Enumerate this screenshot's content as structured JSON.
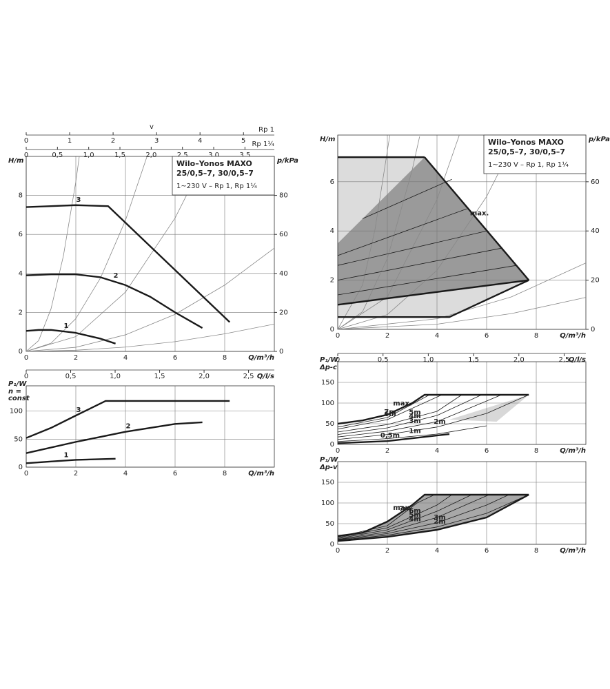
{
  "chart_data": [
    {
      "type": "line",
      "title": [
        "Wilo–Yonos MAXO",
        "25/0,5–7, 30/0,5–7"
      ],
      "subtitle": "1~230 V – Rp 1, Rp 1¼",
      "xlabel": "Q/m³/h",
      "ylabel": "H/m",
      "y2label": "p/kPa",
      "grid": true,
      "xlim": [
        0,
        10
      ],
      "xticks": [
        0,
        2,
        4,
        6,
        8
      ],
      "ylim": [
        0,
        10
      ],
      "yticks": [
        0,
        2,
        4,
        6,
        8
      ],
      "y2lim": [
        0,
        100
      ],
      "y2ticks": [
        0,
        20,
        40,
        60,
        80
      ],
      "top_axes": [
        {
          "label": "v",
          "unit": "Rp 1",
          "xlim": [
            0,
            5.71
          ],
          "xticks": [
            0,
            1,
            2,
            3,
            4,
            5
          ]
        },
        {
          "unit": "Rp 1¼",
          "xlim": [
            0,
            3.97
          ],
          "xticks": [
            0,
            {
              "value": 0.5,
              "label": "0,5"
            },
            {
              "value": 1,
              "label": "1,0"
            },
            {
              "value": 1.5,
              "label": "1,5"
            },
            {
              "value": 2,
              "label": "2,0"
            },
            {
              "value": 2.5,
              "label": "2,5"
            },
            {
              "value": 3,
              "label": "3,0"
            },
            {
              "value": 3.5,
              "label": "3,5"
            }
          ]
        }
      ],
      "bottom_axis": {
        "label": "Q/l/s",
        "xlim": [
          0,
          2.79
        ],
        "xticks": [
          0,
          {
            "value": 0.5,
            "label": "0,5"
          },
          {
            "value": 1,
            "label": "1,0"
          },
          {
            "value": 1.5,
            "label": "1,5"
          },
          {
            "value": 2,
            "label": "2,0"
          },
          {
            "value": 2.5,
            "label": "2,5"
          }
        ]
      },
      "series": [
        {
          "color": "#888888",
          "style": "thin",
          "x": [
            0,
            0.5,
            1,
            1.5,
            2,
            2.14
          ],
          "values": [
            0,
            0.55,
            2.18,
            4.9,
            8.7,
            10
          ]
        },
        {
          "color": "#888888",
          "style": "thin",
          "x": [
            0,
            1,
            2,
            3,
            4,
            4.87
          ],
          "values": [
            0,
            0.42,
            1.68,
            3.78,
            6.72,
            10
          ]
        },
        {
          "color": "#888888",
          "style": "thin",
          "x": [
            0,
            2,
            4,
            6,
            7.25
          ],
          "values": [
            0,
            0.76,
            3.04,
            6.84,
            10
          ]
        },
        {
          "color": "#888888",
          "style": "thin",
          "x": [
            0,
            2,
            4,
            6,
            8,
            10
          ],
          "values": [
            0,
            0.21,
            0.85,
            1.9,
            3.4,
            5.3
          ]
        },
        {
          "color": "#888888",
          "style": "thin",
          "x": [
            0,
            2,
            4,
            6,
            8,
            10
          ],
          "values": [
            0,
            0.06,
            0.22,
            0.5,
            0.9,
            1.4
          ]
        },
        {
          "name": "3",
          "color": "#1a1a1a",
          "style": "thick",
          "x": [
            0,
            1,
            2,
            3.3,
            8.2
          ],
          "values": [
            7.4,
            7.45,
            7.5,
            7.45,
            1.5
          ]
        },
        {
          "name": "2",
          "color": "#1a1a1a",
          "style": "thick",
          "x": [
            0,
            1,
            2,
            3,
            4,
            5,
            6,
            7.1
          ],
          "values": [
            3.9,
            3.95,
            3.95,
            3.8,
            3.4,
            2.8,
            2.0,
            1.2
          ]
        },
        {
          "name": "1",
          "color": "#1a1a1a",
          "style": "thick",
          "x": [
            0,
            0.5,
            1,
            2,
            3,
            3.6
          ],
          "values": [
            1.05,
            1.1,
            1.1,
            0.95,
            0.65,
            0.4
          ]
        }
      ]
    },
    {
      "type": "line",
      "xlabel": "Q/m³/h",
      "ylabel": "P₁/W",
      "mode_label": [
        "n =",
        "const"
      ],
      "grid": true,
      "xlim": [
        0,
        10
      ],
      "xticks": [
        0,
        2,
        4,
        6,
        8
      ],
      "ylim": [
        0,
        145
      ],
      "yticks": [
        0,
        50,
        100
      ],
      "series": [
        {
          "name": "3",
          "color": "#1a1a1a",
          "style": "thick",
          "x": [
            0,
            1,
            2,
            3.2,
            8.2
          ],
          "values": [
            52,
            70,
            92,
            118,
            118
          ]
        },
        {
          "name": "2",
          "color": "#1a1a1a",
          "style": "thick",
          "x": [
            0,
            2,
            4,
            6,
            7.1
          ],
          "values": [
            25,
            45,
            63,
            77,
            80
          ]
        },
        {
          "name": "1",
          "color": "#1a1a1a",
          "style": "thick",
          "x": [
            0,
            1,
            2,
            3.6
          ],
          "values": [
            7,
            10,
            13,
            15
          ]
        }
      ]
    },
    {
      "type": "line",
      "title": [
        "Wilo–Yonos MAXO",
        "25/0,5–7, 30/0,5–7"
      ],
      "subtitle": "1~230 V – Rp 1, Rp 1¼",
      "xlabel": "Q/m³/h",
      "ylabel": "H/m",
      "y2label": "p/kPa",
      "grid": true,
      "xlim": [
        0,
        10
      ],
      "xticks": [
        0,
        2,
        4,
        6,
        8
      ],
      "ylim": [
        0,
        7.9
      ],
      "yticks": [
        0,
        2,
        4,
        6
      ],
      "y2lim": [
        0,
        79
      ],
      "y2ticks": [
        0,
        20,
        40,
        60
      ],
      "bottom_axis": {
        "label": "Q/l/s",
        "xlim": [
          0,
          2.74
        ],
        "xticks": [
          0,
          {
            "value": 0.5,
            "label": "0,5"
          },
          {
            "value": 1,
            "label": "1,0"
          },
          {
            "value": 1.5,
            "label": "1,5"
          },
          {
            "value": 2,
            "label": "2,0"
          },
          {
            "value": 2.5,
            "label": "2,5"
          }
        ]
      },
      "regions": [
        {
          "fill": "#dcdcdc",
          "x": [
            0,
            3.5,
            0
          ],
          "values": [
            7,
            7,
            3.5
          ]
        },
        {
          "fill": "#dcdcdc",
          "x": [
            0,
            4.5,
            7.7,
            0
          ],
          "values": [
            0.5,
            0.5,
            2,
            1
          ]
        },
        {
          "fill": "#9a9a9a",
          "x": [
            0,
            0,
            3.5,
            7.7
          ],
          "values": [
            1,
            3.5,
            7,
            2
          ]
        }
      ],
      "series": [
        {
          "color": "#888888",
          "style": "thin",
          "x": [
            0,
            1,
            1.5,
            2.1
          ],
          "values": [
            0,
            1.8,
            4.05,
            7.9
          ]
        },
        {
          "color": "#888888",
          "style": "thin",
          "x": [
            0,
            1,
            2,
            3,
            3.3
          ],
          "values": [
            0,
            0.72,
            2.88,
            6.48,
            7.84
          ]
        },
        {
          "color": "#888888",
          "style": "thin",
          "x": [
            0,
            2,
            4,
            4.9
          ],
          "values": [
            0,
            1.32,
            5.28,
            7.9
          ]
        },
        {
          "color": "#888888",
          "style": "thin",
          "x": [
            0,
            2,
            4,
            6,
            7.2
          ],
          "values": [
            0,
            0.6,
            2.4,
            5.4,
            7.8
          ]
        },
        {
          "color": "#888888",
          "style": "thin",
          "x": [
            0,
            4,
            7,
            10
          ],
          "values": [
            0,
            0.43,
            1.32,
            2.7
          ]
        },
        {
          "color": "#888888",
          "style": "thin",
          "x": [
            0,
            4,
            7,
            10
          ],
          "values": [
            0,
            0.21,
            0.64,
            1.3
          ]
        },
        {
          "color": "#1a1a1a",
          "style": "thin",
          "x": [
            0,
            7.2
          ],
          "values": [
            1.4,
            2.6
          ]
        },
        {
          "color": "#1a1a1a",
          "style": "thin",
          "x": [
            0,
            6.6
          ],
          "values": [
            2.0,
            3.3
          ]
        },
        {
          "color": "#1a1a1a",
          "style": "thin",
          "x": [
            0,
            6.0
          ],
          "values": [
            2.6,
            4.0
          ]
        },
        {
          "color": "#1a1a1a",
          "style": "thin",
          "x": [
            0,
            5.2
          ],
          "values": [
            3.0,
            4.9
          ]
        },
        {
          "color": "#1a1a1a",
          "style": "thin",
          "x": [
            1.0,
            4.6
          ],
          "values": [
            4.5,
            6.1
          ]
        },
        {
          "color": "#1a1a1a",
          "style": "thick",
          "x": [
            0,
            3.5
          ],
          "values": [
            7,
            7
          ]
        },
        {
          "name": "max.",
          "color": "#1a1a1a",
          "style": "thick",
          "x": [
            3.5,
            7.7
          ],
          "values": [
            7,
            2
          ]
        },
        {
          "color": "#1a1a1a",
          "style": "thick",
          "x": [
            7.7,
            4.5,
            0
          ],
          "values": [
            2,
            0.5,
            0.5
          ]
        },
        {
          "color": "#1a1a1a",
          "style": "thick",
          "x": [
            0,
            7.7
          ],
          "values": [
            1,
            2
          ]
        }
      ]
    },
    {
      "type": "line",
      "xlabel": "Q/m³/h",
      "ylabel": "P₁/W",
      "mode_label": [
        "Δp-c"
      ],
      "grid": true,
      "xlim": [
        0,
        10
      ],
      "xticks": [
        0,
        2,
        4,
        6,
        8
      ],
      "ylim": [
        0,
        200
      ],
      "yticks": [
        0,
        50,
        100,
        150
      ],
      "regions": [
        {
          "fill": "#d8d8d8",
          "x": [
            4.5,
            7.7,
            6.4
          ],
          "values": [
            60,
            120,
            55
          ]
        }
      ],
      "series": [
        {
          "name": "max.",
          "color": "#1a1a1a",
          "style": "thick",
          "x": [
            0,
            1,
            2,
            3,
            3.5,
            7.7
          ],
          "values": [
            50,
            58,
            72,
            100,
            120,
            120
          ]
        },
        {
          "name": "7m",
          "color": "#1a1a1a",
          "style": "thin",
          "x": [
            0,
            2,
            3.7
          ],
          "values": [
            42,
            65,
            120
          ]
        },
        {
          "name": "6m",
          "color": "#1a1a1a",
          "style": "thin",
          "x": [
            0,
            2,
            4.2
          ],
          "values": [
            37,
            60,
            120
          ]
        },
        {
          "name": "5m",
          "color": "#1a1a1a",
          "style": "thin",
          "x": [
            0,
            2,
            4,
            5
          ],
          "values": [
            30,
            48,
            80,
            120
          ]
        },
        {
          "name": "4m",
          "color": "#1a1a1a",
          "style": "thin",
          "x": [
            0,
            2,
            4,
            5.8
          ],
          "values": [
            24,
            40,
            70,
            120
          ]
        },
        {
          "name": "3m",
          "color": "#1a1a1a",
          "style": "thin",
          "x": [
            0,
            2,
            4,
            6.6
          ],
          "values": [
            18,
            32,
            55,
            120
          ]
        },
        {
          "name": "2m",
          "color": "#1a1a1a",
          "style": "thin",
          "x": [
            0,
            2,
            4,
            6,
            7.7
          ],
          "values": [
            12,
            24,
            42,
            75,
            120
          ]
        },
        {
          "name": "1m",
          "color": "#1a1a1a",
          "style": "thin",
          "x": [
            0,
            2,
            4,
            6
          ],
          "values": [
            7,
            14,
            25,
            45
          ]
        },
        {
          "name": "0,5m",
          "color": "#1a1a1a",
          "style": "thick",
          "x": [
            0,
            2,
            4.5
          ],
          "values": [
            3,
            8,
            25
          ]
        }
      ]
    },
    {
      "type": "line",
      "xlabel": "Q/m³/h",
      "ylabel": "P₁/W",
      "mode_label": [
        "Δp-v"
      ],
      "grid": true,
      "xlim": [
        0,
        10
      ],
      "xticks": [
        0,
        2,
        4,
        6,
        8
      ],
      "ylim": [
        0,
        200
      ],
      "yticks": [
        0,
        50,
        100,
        150
      ],
      "regions": [
        {
          "fill": "#a8a8a8",
          "x": [
            0,
            1,
            2,
            3,
            3.5,
            7.7,
            6,
            4,
            2,
            0
          ],
          "values": [
            20,
            28,
            55,
            95,
            120,
            120,
            65,
            35,
            18,
            8
          ]
        }
      ],
      "series": [
        {
          "name": "max.",
          "color": "#1a1a1a",
          "style": "thick",
          "x": [
            0,
            1,
            2,
            3,
            3.5,
            7.7
          ],
          "values": [
            20,
            28,
            55,
            95,
            120,
            120
          ]
        },
        {
          "name": "7m",
          "color": "#1a1a1a",
          "style": "thin",
          "x": [
            0,
            2,
            3.2,
            3.9
          ],
          "values": [
            18,
            45,
            100,
            120
          ]
        },
        {
          "name": "6m",
          "color": "#1a1a1a",
          "style": "thin",
          "x": [
            0,
            2,
            4,
            4.6
          ],
          "values": [
            16,
            40,
            95,
            120
          ]
        },
        {
          "name": "5m",
          "color": "#1a1a1a",
          "style": "thin",
          "x": [
            0,
            2,
            4,
            5.4
          ],
          "values": [
            14,
            35,
            80,
            120
          ]
        },
        {
          "name": "4m",
          "color": "#1a1a1a",
          "style": "thin",
          "x": [
            0,
            2,
            4,
            6.1
          ],
          "values": [
            12,
            30,
            65,
            120
          ]
        },
        {
          "name": "3m",
          "color": "#1a1a1a",
          "style": "thin",
          "x": [
            0,
            2,
            4,
            6,
            6.9
          ],
          "values": [
            11,
            26,
            52,
            95,
            120
          ]
        },
        {
          "name": "2m",
          "color": "#1a1a1a",
          "style": "thin",
          "x": [
            0,
            2,
            4,
            6,
            7.7
          ],
          "values": [
            10,
            22,
            42,
            75,
            120
          ]
        },
        {
          "color": "#1a1a1a",
          "style": "thick",
          "x": [
            0,
            2,
            4,
            6,
            7.7
          ],
          "values": [
            8,
            18,
            35,
            65,
            120
          ]
        }
      ]
    }
  ]
}
